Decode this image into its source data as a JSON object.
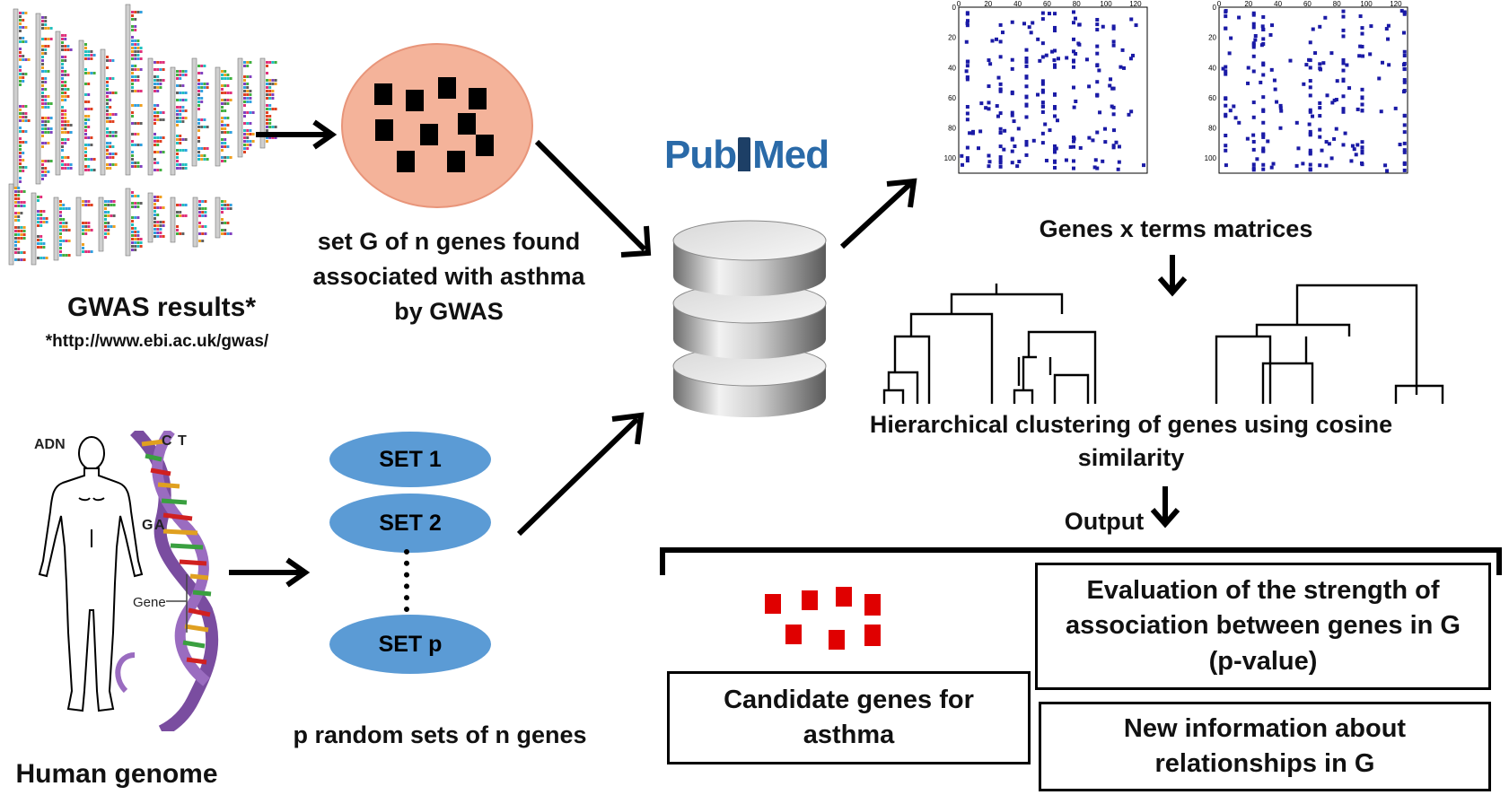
{
  "gwas": {
    "title": "GWAS results*",
    "url": "*http://www.ebi.ac.uk/gwas/"
  },
  "gene_set": {
    "label_line1": "set G of n genes  found",
    "label_line2": "associated with asthma",
    "label_line3": "by GWAS"
  },
  "genome": {
    "title": "Human genome",
    "dna_label": "ADN",
    "base_c": "C",
    "base_t": "T",
    "base_g": "G",
    "base_a": "A",
    "gene_label": "Gene"
  },
  "random_sets": {
    "set1": "SET 1",
    "set2": "SET 2",
    "setp": "SET p",
    "caption": "p random sets of n genes"
  },
  "pubmed": {
    "pub": "Pub",
    "med": "Med"
  },
  "matrices": {
    "caption": "Genes x terms matrices",
    "x_ticks": [
      "0",
      "20",
      "40",
      "60",
      "80",
      "100",
      "120"
    ],
    "y_ticks": [
      "0",
      "20",
      "40",
      "60",
      "80",
      "100"
    ]
  },
  "clustering": {
    "caption_line1": "Hierarchical clustering of genes using cosine",
    "caption_line2": "similarity"
  },
  "output": {
    "label": "Output",
    "candidate_line1": "Candidate genes for",
    "candidate_line2": "asthma",
    "evaluation_line1": "Evaluation of the strength of",
    "evaluation_line2": "association between genes in G",
    "evaluation_line3": "(p-value)",
    "new_info_line1": "New information about",
    "new_info_line2": "relationships  in G"
  },
  "colors": {
    "blue_set": "#5b9bd5",
    "salmon_circle": "#f4b39a",
    "matrix_dots": "#1a1aa6",
    "output_squares": "#e00000",
    "pubmed_blue": "#2a6aa8"
  }
}
